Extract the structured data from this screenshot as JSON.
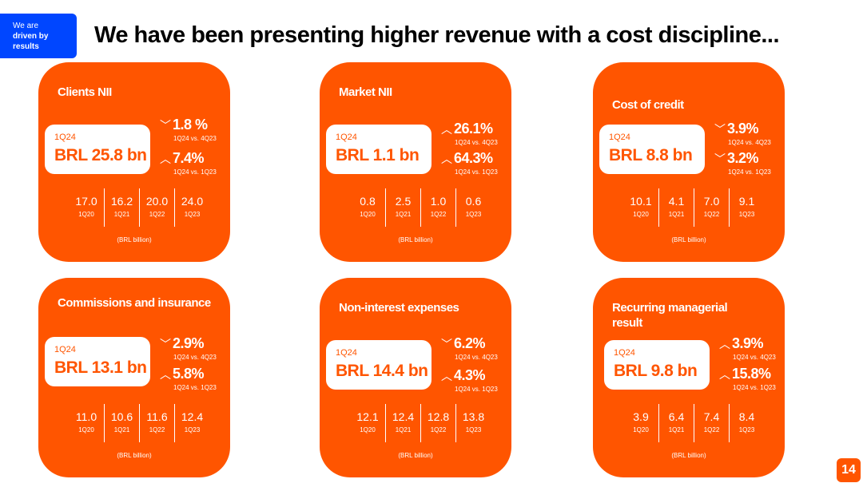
{
  "badge": {
    "line1": "We are",
    "line2": "driven by",
    "line3": "results"
  },
  "title": "We have been presenting higher revenue with a cost discipline...",
  "page_number": "14",
  "cards": [
    {
      "title": "Clients NII",
      "period": "1Q24",
      "value": "BRL 25.8 bn",
      "changes": [
        {
          "dir": "down",
          "pct": "1.8 %",
          "label": "1Q24 vs. 4Q23"
        },
        {
          "dir": "up",
          "pct": "7.4%",
          "label": "1Q24 vs. 1Q23"
        }
      ],
      "history": [
        {
          "val": "17.0",
          "yr": "1Q20"
        },
        {
          "val": "16.2",
          "yr": "1Q21"
        },
        {
          "val": "20.0",
          "yr": "1Q22"
        },
        {
          "val": "24.0",
          "yr": "1Q23"
        }
      ],
      "note": "(BRL billion)"
    },
    {
      "title": "Market NII",
      "period": "1Q24",
      "value": "BRL 1.1 bn",
      "changes": [
        {
          "dir": "up",
          "pct": "26.1%",
          "label": "1Q24 vs. 4Q23"
        },
        {
          "dir": "up",
          "pct": "64.3%",
          "label": "1Q24 vs. 1Q23"
        }
      ],
      "history": [
        {
          "val": "0.8",
          "yr": "1Q20"
        },
        {
          "val": "2.5",
          "yr": "1Q21"
        },
        {
          "val": "1.0",
          "yr": "1Q22"
        },
        {
          "val": "0.6",
          "yr": "1Q23"
        }
      ],
      "note": "(BRL billion)"
    },
    {
      "title": "Cost of credit",
      "period": "1Q24",
      "value": "BRL 8.8 bn",
      "changes": [
        {
          "dir": "down",
          "pct": "3.9%",
          "label": "1Q24 vs. 4Q23"
        },
        {
          "dir": "down",
          "pct": "3.2%",
          "label": "1Q24 vs. 1Q23"
        }
      ],
      "history": [
        {
          "val": "10.1",
          "yr": "1Q20"
        },
        {
          "val": "4.1",
          "yr": "1Q21"
        },
        {
          "val": "7.0",
          "yr": "1Q22"
        },
        {
          "val": "9.1",
          "yr": "1Q23"
        }
      ],
      "note": "(BRL billion)"
    },
    {
      "title": "Commissions and insurance",
      "period": "1Q24",
      "value": "BRL 13.1 bn",
      "changes": [
        {
          "dir": "down",
          "pct": "2.9%",
          "label": "1Q24 vs. 4Q23"
        },
        {
          "dir": "up",
          "pct": "5.8%",
          "label": "1Q24 vs. 1Q23"
        }
      ],
      "history": [
        {
          "val": "11.0",
          "yr": "1Q20"
        },
        {
          "val": "10.6",
          "yr": "1Q21"
        },
        {
          "val": "11.6",
          "yr": "1Q22"
        },
        {
          "val": "12.4",
          "yr": "1Q23"
        }
      ],
      "note": "(BRL billion)"
    },
    {
      "title": "Non-interest expenses",
      "period": "1Q24",
      "value": "BRL 14.4 bn",
      "changes": [
        {
          "dir": "down",
          "pct": "6.2%",
          "label": "1Q24 vs. 4Q23"
        },
        {
          "dir": "up",
          "pct": "4.3%",
          "label": "1Q24 vs. 1Q23"
        }
      ],
      "history": [
        {
          "val": "12.1",
          "yr": "1Q20"
        },
        {
          "val": "12.4",
          "yr": "1Q21"
        },
        {
          "val": "12.8",
          "yr": "1Q22"
        },
        {
          "val": "13.8",
          "yr": "1Q23"
        }
      ],
      "note": "(BRL billion)"
    },
    {
      "title": "Recurring managerial result",
      "period": "1Q24",
      "value": "BRL 9.8 bn",
      "changes": [
        {
          "dir": "up",
          "pct": "3.9%",
          "label": "1Q24 vs. 4Q23"
        },
        {
          "dir": "up",
          "pct": "15.8%",
          "label": "1Q24 vs. 1Q23"
        }
      ],
      "history": [
        {
          "val": "3.9",
          "yr": "1Q20"
        },
        {
          "val": "6.4",
          "yr": "1Q21"
        },
        {
          "val": "7.4",
          "yr": "1Q22"
        },
        {
          "val": "8.4",
          "yr": "1Q23"
        }
      ],
      "note": "(BRL billion)"
    }
  ]
}
